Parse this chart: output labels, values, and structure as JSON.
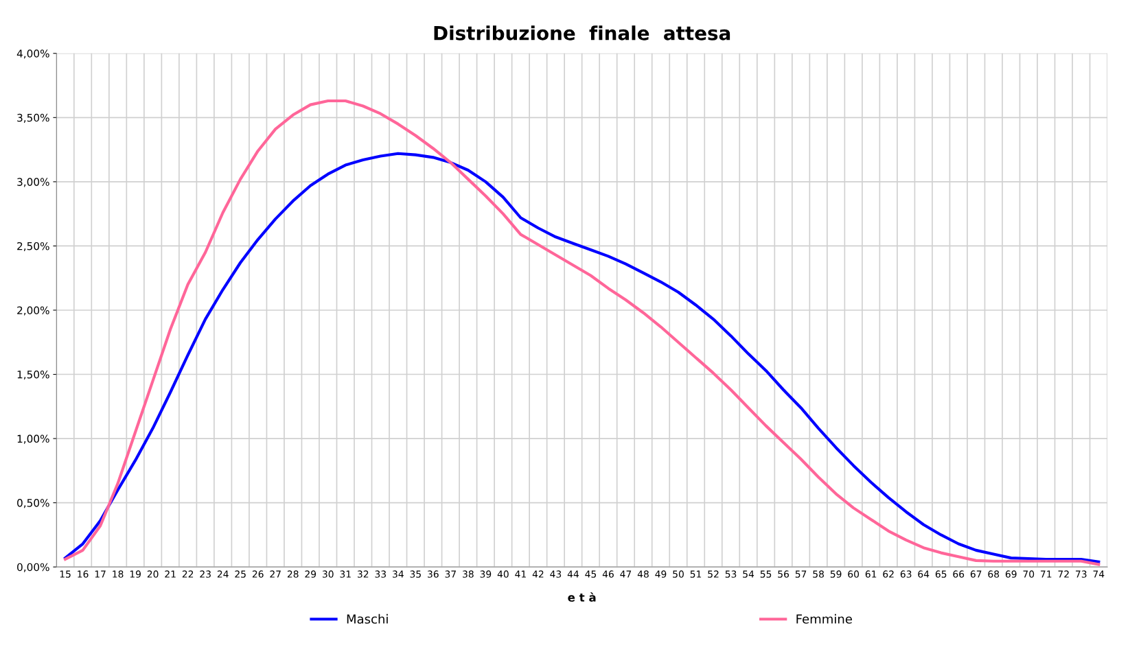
{
  "chart_data": {
    "type": "line",
    "title": "Distribuzione  finale  attesa",
    "xlabel": "e t à",
    "categories": [
      "15",
      "16",
      "17",
      "18",
      "19",
      "20",
      "21",
      "22",
      "23",
      "24",
      "25",
      "26",
      "27",
      "28",
      "29",
      "30",
      "31",
      "32",
      "33",
      "34",
      "35",
      "36",
      "37",
      "38",
      "39",
      "40",
      "41",
      "42",
      "43",
      "44",
      "45",
      "46",
      "47",
      "48",
      "49",
      "50",
      "51",
      "52",
      "53",
      "54",
      "55",
      "56",
      "57",
      "58",
      "59",
      "60",
      "61",
      "62",
      "63",
      "64",
      "65",
      "66",
      "67",
      "68",
      "69",
      "70",
      "71",
      "72",
      "73",
      "74"
    ],
    "series": [
      {
        "name": "Maschi",
        "color": "#0000ff",
        "values": [
          0.07,
          0.18,
          0.36,
          0.6,
          0.83,
          1.08,
          1.36,
          1.65,
          1.93,
          2.16,
          2.37,
          2.55,
          2.71,
          2.85,
          2.97,
          3.06,
          3.13,
          3.17,
          3.2,
          3.22,
          3.21,
          3.19,
          3.15,
          3.09,
          3.0,
          2.88,
          2.72,
          2.64,
          2.57,
          2.52,
          2.47,
          2.42,
          2.36,
          2.29,
          2.22,
          2.14,
          2.04,
          1.93,
          1.8,
          1.66,
          1.53,
          1.38,
          1.24,
          1.08,
          0.93,
          0.79,
          0.66,
          0.54,
          0.43,
          0.33,
          0.25,
          0.18,
          0.13,
          0.1,
          0.07,
          0.065,
          0.06,
          0.06,
          0.06,
          0.04
        ]
      },
      {
        "name": "Femmine",
        "color": "#ff6699",
        "values": [
          0.06,
          0.13,
          0.32,
          0.65,
          1.05,
          1.45,
          1.85,
          2.2,
          2.45,
          2.76,
          3.02,
          3.24,
          3.41,
          3.52,
          3.6,
          3.63,
          3.63,
          3.59,
          3.53,
          3.45,
          3.36,
          3.26,
          3.15,
          3.02,
          2.89,
          2.75,
          2.59,
          2.51,
          2.43,
          2.35,
          2.27,
          2.17,
          2.08,
          1.98,
          1.87,
          1.75,
          1.63,
          1.51,
          1.38,
          1.24,
          1.1,
          0.97,
          0.84,
          0.7,
          0.57,
          0.46,
          0.37,
          0.28,
          0.21,
          0.15,
          0.11,
          0.08,
          0.05,
          0.045,
          0.045,
          0.045,
          0.045,
          0.045,
          0.045,
          0.02
        ]
      }
    ],
    "ylim": [
      0,
      4
    ],
    "yticks": [
      {
        "value": 0,
        "label": "0,00%"
      },
      {
        "value": 0.5,
        "label": "0,50%"
      },
      {
        "value": 1,
        "label": "1,00%"
      },
      {
        "value": 1.5,
        "label": "1,50%"
      },
      {
        "value": 2,
        "label": "2,00%"
      },
      {
        "value": 2.5,
        "label": "2,50%"
      },
      {
        "value": 3,
        "label": "3,00%"
      },
      {
        "value": 3.5,
        "label": "3,50%"
      },
      {
        "value": 4,
        "label": "4,00%"
      }
    ],
    "grid": true,
    "legend": "bottom",
    "line_style": "solid"
  }
}
